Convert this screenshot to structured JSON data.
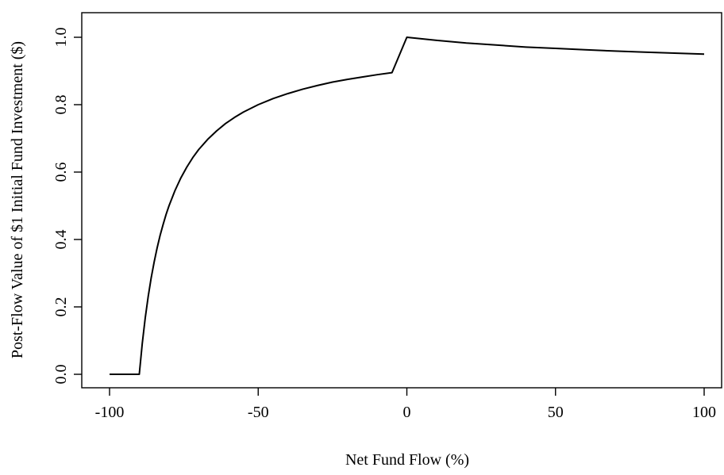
{
  "chart_data": {
    "type": "line",
    "title": "",
    "xlabel": "Net Fund Flow (%)",
    "ylabel": "Post-Flow Value of $1 Initial Fund Investment ($)",
    "xlim": [
      -100,
      100
    ],
    "ylim": [
      0,
      1
    ],
    "xticks": [
      -100,
      -50,
      0,
      50,
      100
    ],
    "yticks": [
      0.0,
      0.2,
      0.4,
      0.6,
      0.8,
      1.0
    ],
    "xtick_labels": [
      "-100",
      "-50",
      "0",
      "50",
      "100"
    ],
    "ytick_labels": [
      "0.0",
      "0.2",
      "0.4",
      "0.6",
      "0.8",
      "1.0"
    ],
    "grid": false,
    "legend": "none",
    "series": [
      {
        "x": [
          -100,
          -90,
          -89,
          -88,
          -87,
          -86,
          -85,
          -84,
          -83,
          -82,
          -81,
          -80,
          -78,
          -76,
          -74,
          -72,
          -70,
          -67,
          -64,
          -61,
          -58,
          -55,
          -50,
          -45,
          -40,
          -35,
          -30,
          -25,
          -20,
          -15,
          -10,
          -5,
          0,
          10,
          20,
          30,
          40,
          50,
          60,
          70,
          80,
          90,
          100
        ],
        "y": [
          0,
          0,
          0.091,
          0.167,
          0.231,
          0.286,
          0.333,
          0.375,
          0.412,
          0.444,
          0.474,
          0.5,
          0.545,
          0.583,
          0.615,
          0.643,
          0.667,
          0.697,
          0.722,
          0.744,
          0.762,
          0.778,
          0.8,
          0.818,
          0.833,
          0.846,
          0.857,
          0.867,
          0.875,
          0.882,
          0.889,
          0.895,
          1.0,
          0.991,
          0.983,
          0.977,
          0.971,
          0.967,
          0.963,
          0.959,
          0.956,
          0.953,
          0.95
        ]
      }
    ]
  }
}
